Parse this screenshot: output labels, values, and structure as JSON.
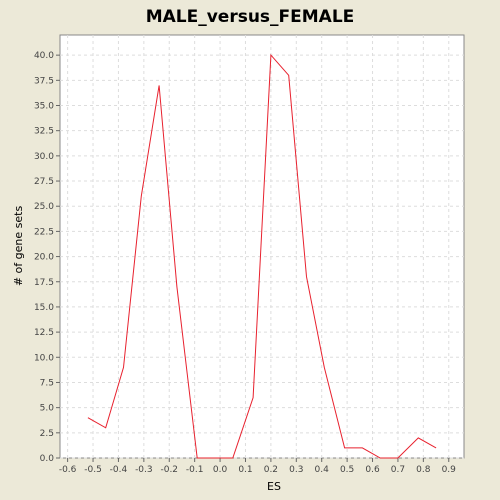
{
  "chart_data": {
    "type": "line",
    "title": "MALE_versus_FEMALE",
    "xlabel": "ES",
    "ylabel": "# of gene sets",
    "xlim": [
      -0.63,
      0.96
    ],
    "ylim": [
      0,
      42
    ],
    "xticks": [
      "-0.6",
      "-0.5",
      "-0.4",
      "-0.3",
      "-0.2",
      "-0.1",
      "0.0",
      "0.1",
      "0.2",
      "0.3",
      "0.4",
      "0.5",
      "0.6",
      "0.7",
      "0.8",
      "0.9"
    ],
    "yticks": [
      "0.0",
      "2.5",
      "5.0",
      "7.5",
      "10.0",
      "12.5",
      "15.0",
      "17.5",
      "20.0",
      "22.5",
      "25.0",
      "27.5",
      "30.0",
      "32.5",
      "35.0",
      "37.5",
      "40.0"
    ],
    "grid": true,
    "colors": {
      "line": "#e8212e",
      "plot_bg": "#ffffff",
      "grid": "#dddddd",
      "page_bg": "#ece9d8"
    },
    "series": [
      {
        "x": [
          -0.52,
          -0.45,
          -0.38,
          -0.31,
          -0.24,
          -0.17,
          -0.09,
          -0.02,
          0.05,
          0.13,
          0.2,
          0.27,
          0.34,
          0.41,
          0.49,
          0.56,
          0.63,
          0.7,
          0.78,
          0.85
        ],
        "y": [
          4,
          3,
          9,
          26,
          37,
          17,
          0,
          0,
          0,
          6,
          40,
          38,
          18,
          9,
          1,
          1,
          0,
          0,
          2,
          1
        ]
      }
    ]
  }
}
